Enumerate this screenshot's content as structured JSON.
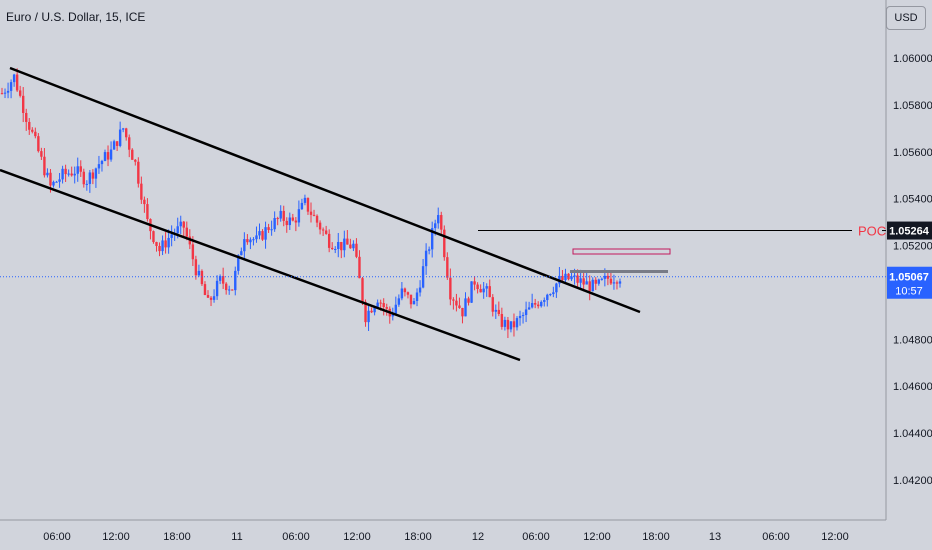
{
  "header": {
    "symbol_title": "Euro / U.S. Dollar, 15, ICE",
    "currency_button": "USD"
  },
  "colors": {
    "background": "#d1d4dc",
    "axis_text": "#131722",
    "bull_candle": "#2962ff",
    "bear_candle": "#f23645",
    "channel_line": "#000000",
    "poc_line": "#000000",
    "poc_label": "#f23645",
    "price_line": "#2962ff",
    "price_label_bg": "#2962ff",
    "poc_tag_bg": "#131722"
  },
  "chart_data": {
    "type": "candlestick",
    "y_axis": {
      "ticks": [
        "1.06000",
        "1.05800",
        "1.05600",
        "1.05400",
        "1.05200",
        "1.04800",
        "1.04600",
        "1.04400",
        "1.04200"
      ],
      "range": [
        1.04,
        1.062
      ]
    },
    "x_axis": {
      "ticks": [
        "06:00",
        "12:00",
        "18:00",
        "11",
        "06:00",
        "12:00",
        "18:00",
        "12",
        "06:00",
        "12:00",
        "18:00",
        "13",
        "06:00",
        "12:00"
      ]
    },
    "current_price": {
      "value": 1.05067,
      "label": "1.05067",
      "countdown": "10:57"
    },
    "poc": {
      "label": "POC",
      "value": 1.05264,
      "tag": "1.05264"
    },
    "price_path": [
      1.0585,
      1.0592,
      1.0575,
      1.056,
      1.0545,
      1.055,
      1.0552,
      1.0548,
      1.0555,
      1.056,
      1.057,
      1.0555,
      1.053,
      1.0518,
      1.0525,
      1.0528,
      1.051,
      1.0495,
      1.0505,
      1.0502,
      1.0525,
      1.0522,
      1.0528,
      1.0532,
      1.053,
      1.0538,
      1.053,
      1.0522,
      1.052,
      1.052,
      1.049,
      1.0498,
      1.049,
      1.05,
      1.0495,
      1.0515,
      1.0535,
      1.05,
      1.0492,
      1.0505,
      1.05,
      1.0488,
      1.0485,
      1.049,
      1.0495,
      1.05,
      1.0505,
      1.0506,
      1.0504,
      1.0502,
      1.0506,
      1.0507
    ]
  }
}
